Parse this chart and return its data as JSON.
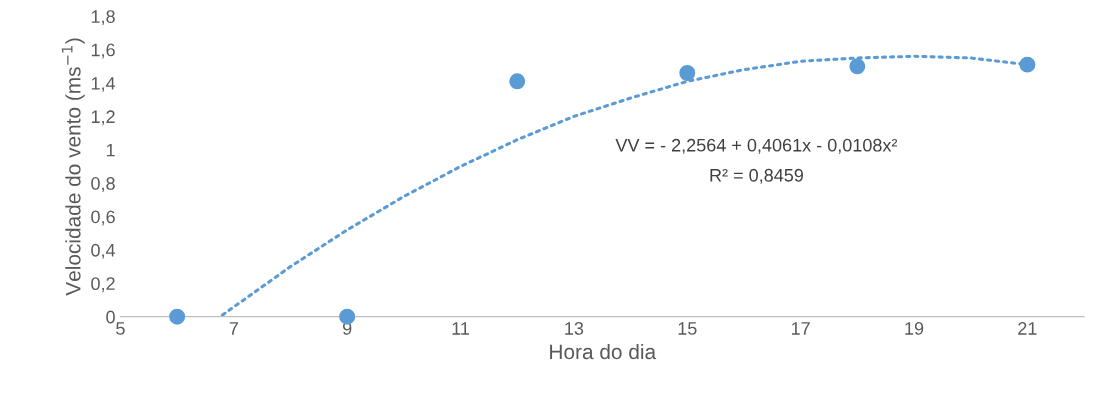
{
  "chart_data": {
    "type": "scatter",
    "xlabel": "Hora do dia",
    "ylabel": "Velocidade do vento (ms$^{−1}$)",
    "xlim": [
      5,
      22
    ],
    "xticks": [
      5,
      7,
      9,
      11,
      13,
      15,
      17,
      19,
      21
    ],
    "ylim": [
      0,
      1.8
    ],
    "yticks": [
      {
        "value": 0,
        "label": "0"
      },
      {
        "value": 0.2,
        "label": "0,2"
      },
      {
        "value": 0.4,
        "label": "0,4"
      },
      {
        "value": 0.6,
        "label": "0,6"
      },
      {
        "value": 0.8,
        "label": "0,8"
      },
      {
        "value": 1,
        "label": "1"
      },
      {
        "value": 1.2,
        "label": "1,2"
      },
      {
        "value": 1.4,
        "label": "1,4"
      },
      {
        "value": 1.6,
        "label": "1,6"
      },
      {
        "value": 1.8,
        "label": "1,8"
      }
    ],
    "grid": false,
    "legend": false,
    "annotations": [
      "VV = - 2,2564 + 0,4061x - 0,0108x²",
      "R² = 0,8459"
    ],
    "series": [
      {
        "color": "#5b9bd5",
        "marker": "circle",
        "x": [
          6,
          9,
          12,
          15,
          18,
          21
        ],
        "values": [
          0,
          0,
          1.41,
          1.46,
          1.5,
          1.51
        ]
      },
      {
        "type": "line",
        "color": "#5b9bd5",
        "marker": "none",
        "line_style": "dotted",
        "x": [
          6.8,
          8,
          9,
          10,
          11,
          12,
          13,
          14,
          15,
          16,
          17,
          18,
          19,
          20,
          21
        ],
        "values": [
          0.01,
          0.3,
          0.52,
          0.72,
          0.9,
          1.06,
          1.2,
          1.31,
          1.41,
          1.48,
          1.53,
          1.55,
          1.56,
          1.55,
          1.51
        ]
      }
    ]
  }
}
